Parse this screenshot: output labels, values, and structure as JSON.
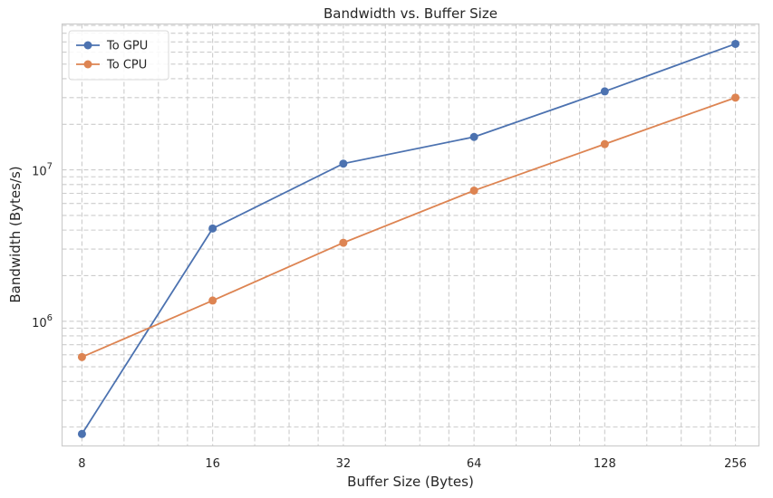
{
  "chart_data": {
    "type": "line",
    "title": "Bandwidth vs. Buffer Size",
    "xlabel": "Buffer Size (Bytes)",
    "ylabel": "Bandwidth (Bytes/s)",
    "x_scale": "log2",
    "y_scale": "log10",
    "x": [
      8,
      16,
      32,
      64,
      128,
      256
    ],
    "x_tick_labels": [
      "8",
      "16",
      "32",
      "64",
      "128",
      "256"
    ],
    "xlim": [
      7.2,
      290
    ],
    "ylim": [
      150000,
      92000000
    ],
    "y_tick_labels": [
      {
        "value": 1000000,
        "base": "10",
        "exp": "6"
      },
      {
        "value": 10000000,
        "base": "10",
        "exp": "7"
      }
    ],
    "grid": true,
    "legend_position": "top-left",
    "series": [
      {
        "name": "To GPU",
        "color": "#4c72b0",
        "values": [
          180000,
          4100000,
          11000000,
          16500000,
          33000000,
          68000000
        ]
      },
      {
        "name": "To CPU",
        "color": "#dd8452",
        "values": [
          580000,
          1370000,
          3300000,
          7300000,
          14800000,
          30000000
        ]
      }
    ]
  }
}
